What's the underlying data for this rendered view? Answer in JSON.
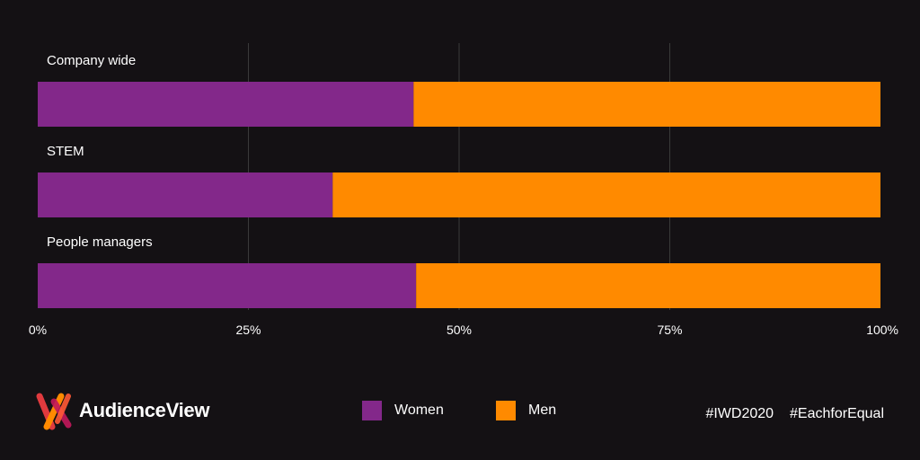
{
  "colors": {
    "background": "#141114",
    "women": "#83288a",
    "men": "#ff8a00",
    "grid": "#3a3a3a"
  },
  "chart_data": {
    "type": "bar",
    "orientation": "horizontal",
    "stacked": true,
    "categories": [
      "Company wide",
      "STEM",
      "People managers"
    ],
    "series": [
      {
        "name": "Women",
        "values": [
          44.6,
          35.0,
          44.9
        ]
      },
      {
        "name": "Men",
        "values": [
          55.4,
          65.0,
          55.1
        ]
      }
    ],
    "xlim": [
      0,
      100
    ],
    "xticks": [
      "0%",
      "25%",
      "50%",
      "75%",
      "100%"
    ],
    "grid": "vertical",
    "legend_position": "bottom-center"
  },
  "footer": {
    "brand": "AudienceView",
    "legend": [
      {
        "label": "Women",
        "color": "#83288a"
      },
      {
        "label": "Men",
        "color": "#ff8a00"
      }
    ],
    "hashtags": [
      "#IWD2020",
      "#EachforEqual"
    ]
  }
}
